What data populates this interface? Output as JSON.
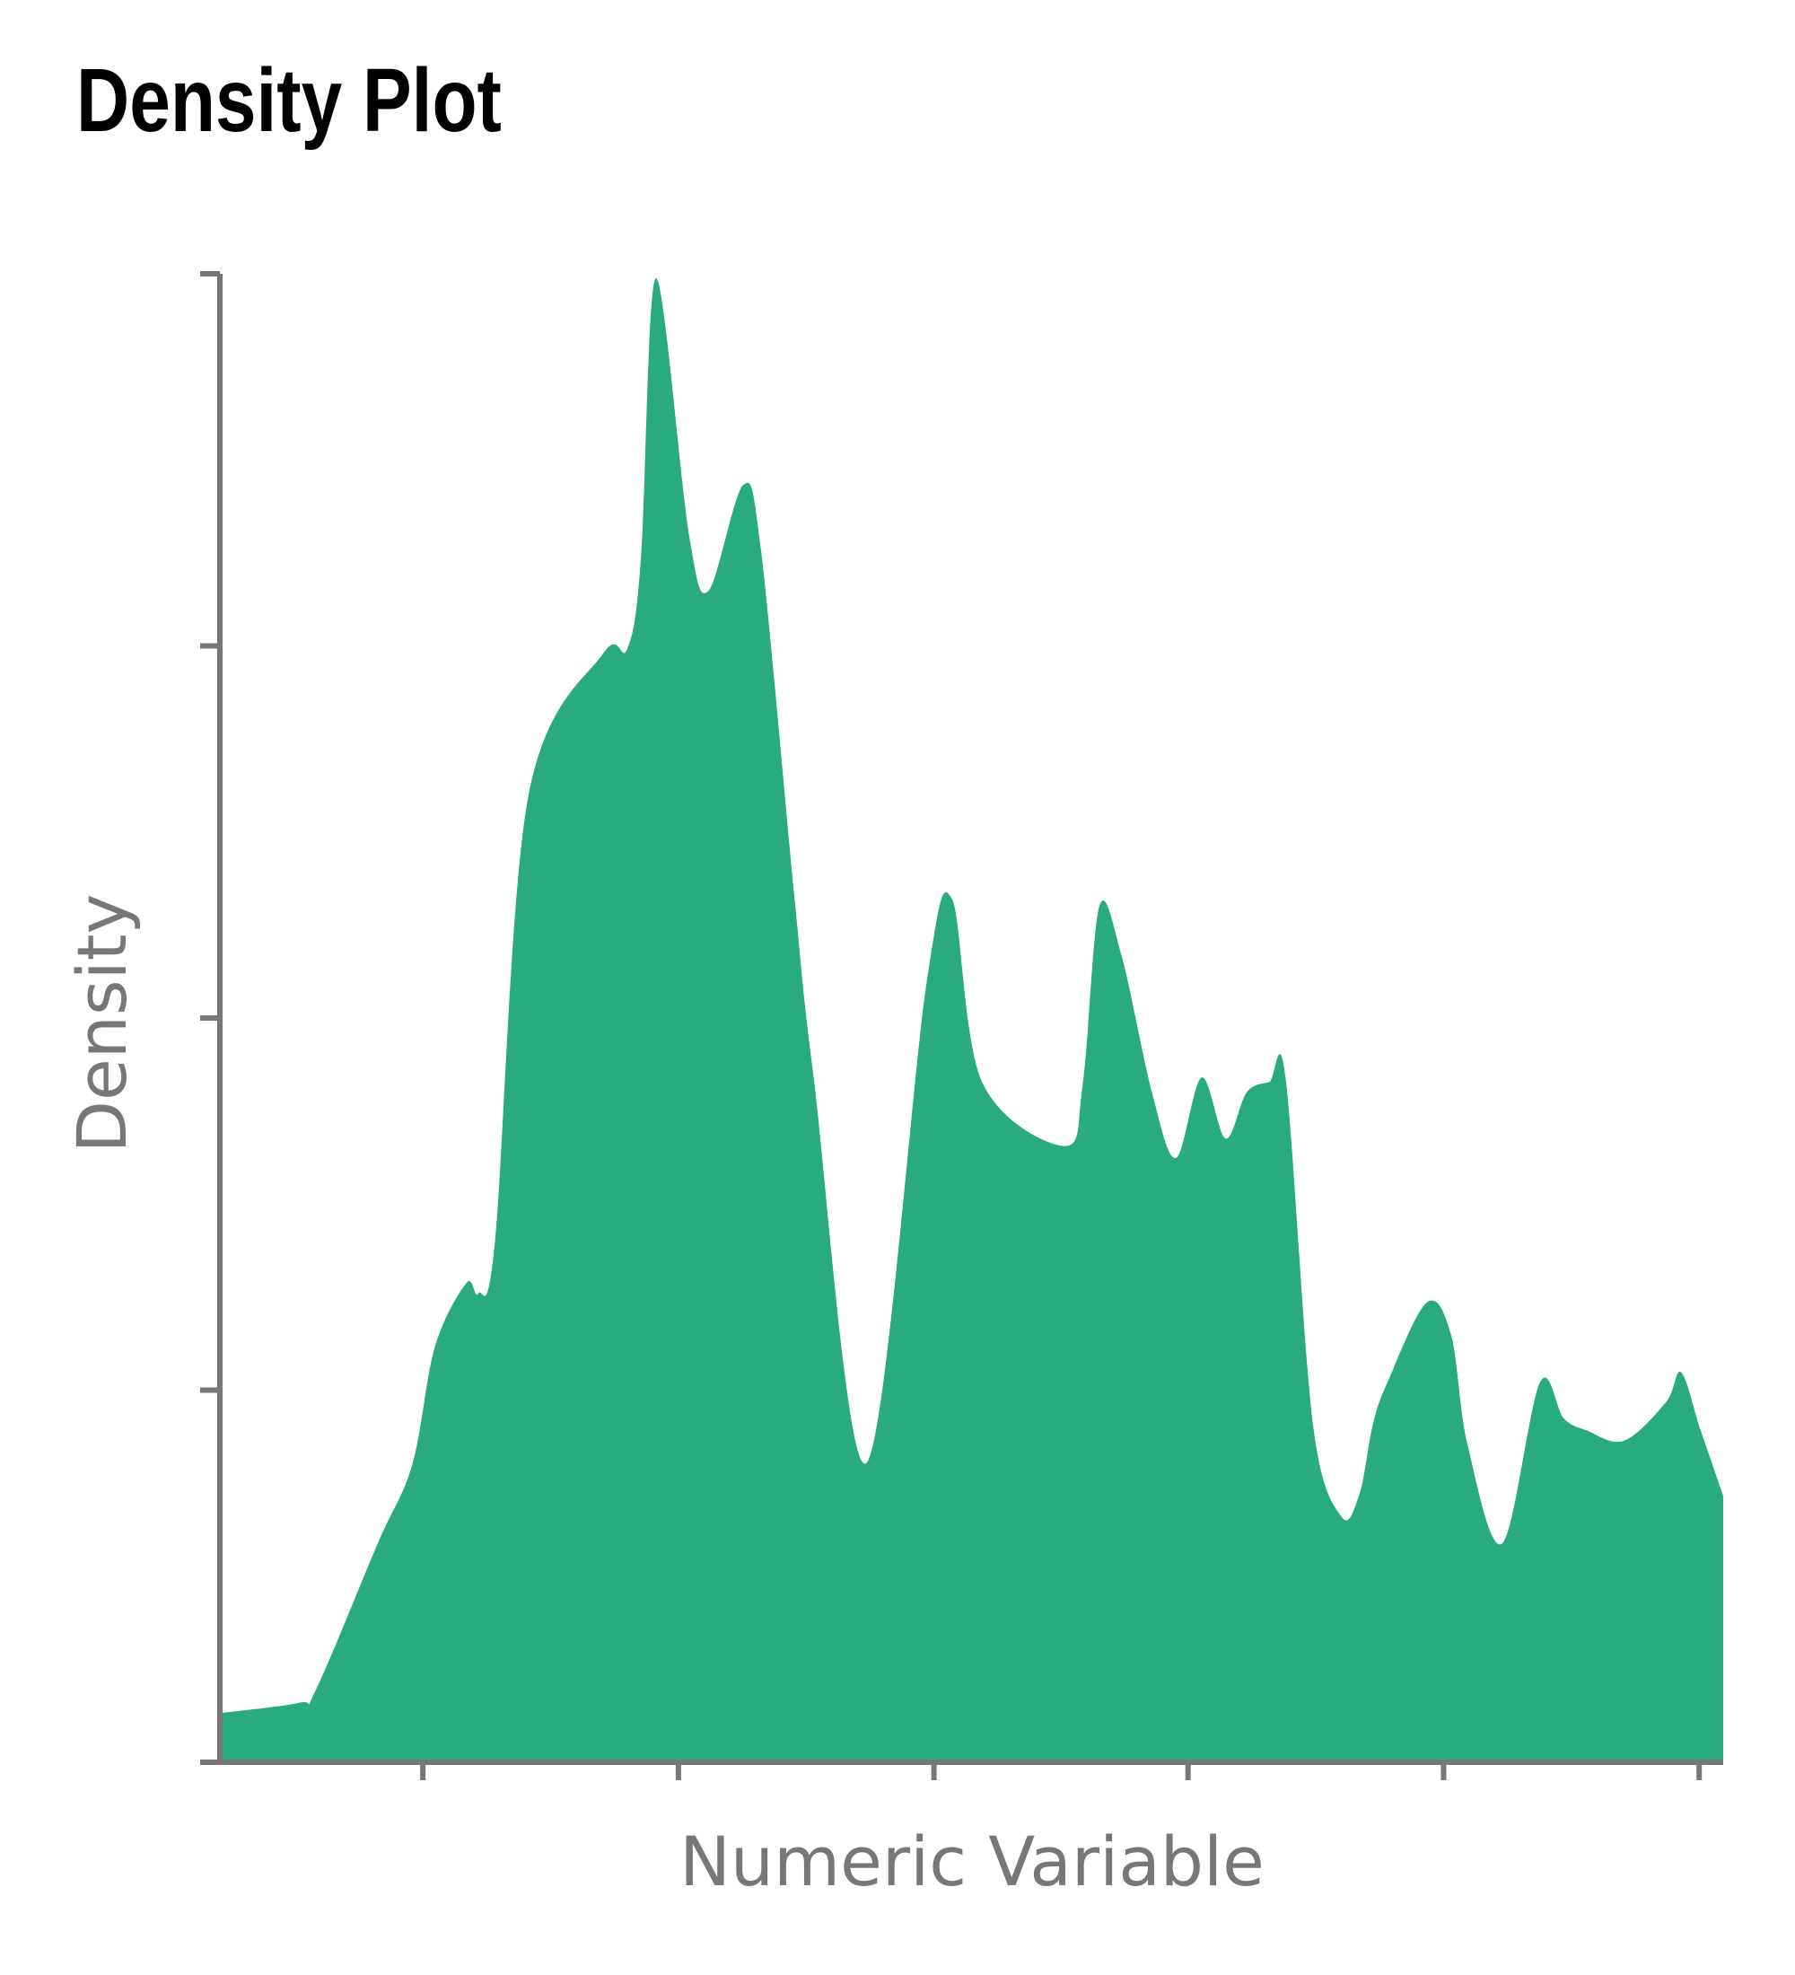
{
  "chart_data": {
    "type": "area",
    "title": "Density Plot",
    "xlabel": "Numeric Variable",
    "ylabel": "Density",
    "xlim": [
      0,
      1
    ],
    "ylim": [
      0,
      1
    ],
    "x_ticks": [
      0.135,
      0.305,
      0.475,
      0.644,
      0.814,
      0.984
    ],
    "y_ticks": [
      0,
      0.25,
      0.5,
      0.75,
      1.0
    ],
    "grid": false,
    "legend": "none",
    "fill_color": "#2aaa7f",
    "axis_color": "#777777",
    "series": [
      {
        "x": [
          0.0,
          0.053,
          0.064,
          0.105,
          0.128,
          0.143,
          0.164,
          0.172,
          0.183,
          0.205,
          0.255,
          0.271,
          0.28,
          0.29,
          0.312,
          0.325,
          0.348,
          0.36,
          0.382,
          0.395,
          0.43,
          0.47,
          0.487,
          0.507,
          0.562,
          0.574,
          0.585,
          0.6,
          0.62,
          0.636,
          0.653,
          0.669,
          0.683,
          0.698,
          0.709,
          0.727,
          0.746,
          0.758,
          0.767,
          0.777,
          0.803,
          0.819,
          0.83,
          0.853,
          0.878,
          0.894,
          0.909,
          0.934,
          0.962,
          0.972,
          0.985,
          1.0
        ],
        "y": [
          0.033,
          0.04,
          0.049,
          0.147,
          0.2,
          0.279,
          0.322,
          0.315,
          0.35,
          0.648,
          0.745,
          0.748,
          0.808,
          0.997,
          0.825,
          0.787,
          0.858,
          0.814,
          0.583,
          0.46,
          0.201,
          0.523,
          0.58,
          0.457,
          0.414,
          0.456,
          0.575,
          0.541,
          0.45,
          0.406,
          0.46,
          0.419,
          0.45,
          0.457,
          0.459,
          0.228,
          0.165,
          0.18,
          0.227,
          0.256,
          0.309,
          0.287,
          0.213,
          0.147,
          0.255,
          0.231,
          0.223,
          0.216,
          0.242,
          0.262,
          0.223,
          0.179
        ]
      }
    ]
  }
}
